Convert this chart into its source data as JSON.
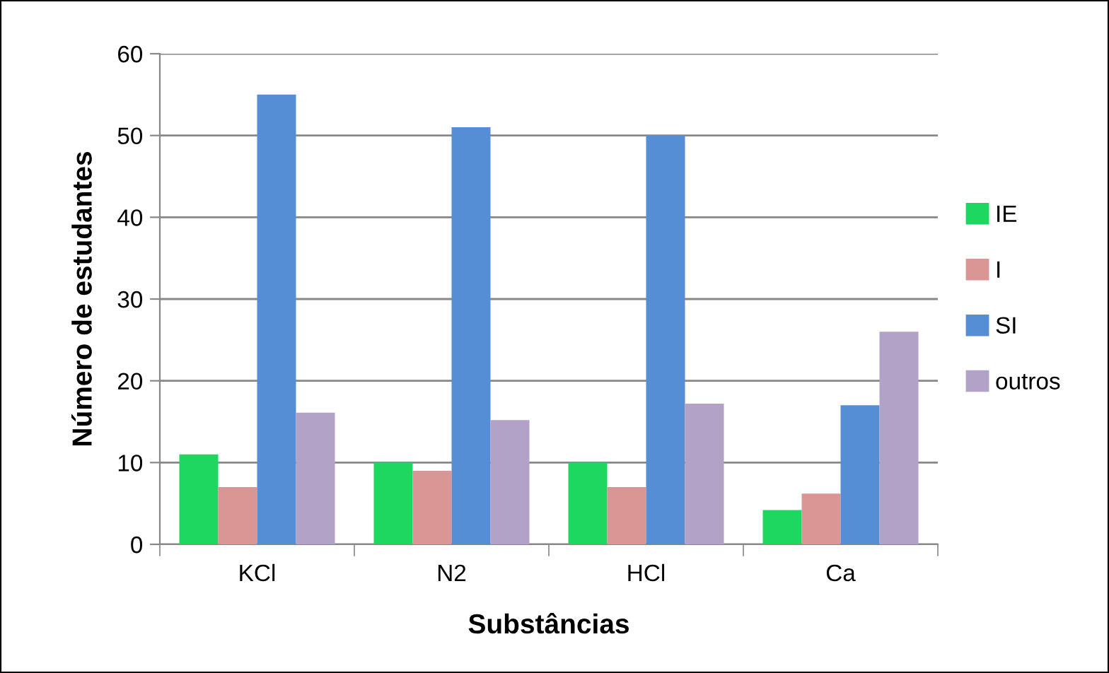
{
  "chart_data": {
    "type": "bar",
    "xlabel": "Substâncias",
    "ylabel": "Número de estudantes",
    "categories": [
      "KCl",
      "N2",
      "HCl",
      "Ca"
    ],
    "series": [
      {
        "name": "IE",
        "color": "#1ed760",
        "values": [
          11,
          10,
          10,
          4.2
        ]
      },
      {
        "name": "I",
        "color": "#da9694",
        "values": [
          7,
          9,
          7,
          6.2
        ]
      },
      {
        "name": "SI",
        "color": "#558ed5",
        "values": [
          55,
          51,
          50,
          17
        ]
      },
      {
        "name": "outros",
        "color": "#b3a2c7",
        "values": [
          16.1,
          15.2,
          17.2,
          26
        ]
      }
    ],
    "ylim": [
      0,
      60
    ],
    "yticks": [
      0,
      10,
      20,
      30,
      40,
      50,
      60
    ],
    "grid": "y",
    "legend": "right"
  }
}
